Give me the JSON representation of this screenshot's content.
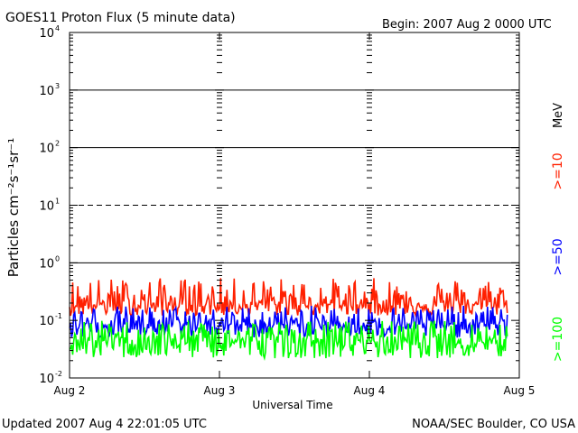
{
  "chart_data": {
    "type": "line",
    "title": "GOES11 Proton Flux (5 minute data)",
    "begin_label": "Begin: 2007 Aug 2 0000 UTC",
    "xlabel": "Universal Time",
    "ylabel": "Particles cm⁻²s⁻¹sr⁻¹",
    "y_scale": "log",
    "ylim": [
      0.01,
      10000
    ],
    "y_ticks": [
      {
        "value": 0.01,
        "base": "10",
        "exp": "-2"
      },
      {
        "value": 0.1,
        "base": "10",
        "exp": "-1"
      },
      {
        "value": 1,
        "base": "10",
        "exp": "0"
      },
      {
        "value": 10,
        "base": "10",
        "exp": "1"
      },
      {
        "value": 100,
        "base": "10",
        "exp": "2"
      },
      {
        "value": 1000,
        "base": "10",
        "exp": "3"
      },
      {
        "value": 10000,
        "base": "10",
        "exp": "4"
      }
    ],
    "x_days": [
      0,
      3
    ],
    "x_ticks": [
      {
        "day": 0,
        "label": "Aug 2"
      },
      {
        "day": 1,
        "label": "Aug 3"
      },
      {
        "day": 2,
        "label": "Aug 4"
      },
      {
        "day": 3,
        "label": "Aug 5"
      }
    ],
    "reference_lines": [
      {
        "value": 1000,
        "style": "solid"
      },
      {
        "value": 100,
        "style": "solid"
      },
      {
        "value": 10,
        "style": "dashed"
      },
      {
        "value": 1,
        "style": "solid"
      }
    ],
    "series": [
      {
        "name": ">=10",
        "color": "#ff2000",
        "baseline": 0.19,
        "min": 0.12,
        "max": 0.55
      },
      {
        "name": ">=50",
        "color": "#0000ff",
        "baseline": 0.085,
        "min": 0.05,
        "max": 0.18
      },
      {
        "name": ">=100",
        "color": "#00ff00",
        "baseline": 0.045,
        "min": 0.022,
        "max": 0.1
      }
    ],
    "data_end_day": 2.92,
    "unit_label": "MeV"
  },
  "footer": {
    "updated": "Updated 2007 Aug  4 22:01:05 UTC",
    "credit": "NOAA/SEC Boulder, CO USA"
  }
}
